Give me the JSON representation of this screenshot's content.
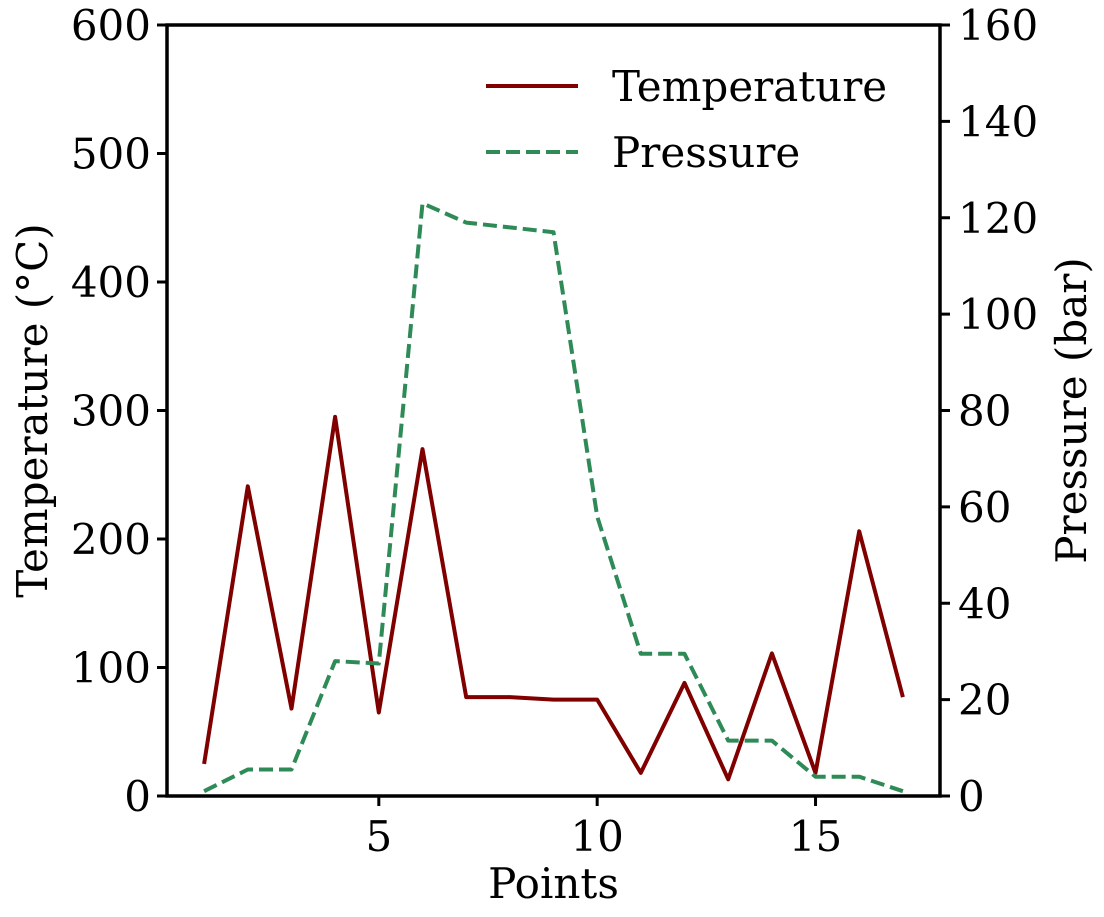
{
  "chart_data": {
    "type": "line",
    "x": [
      1,
      2,
      3,
      4,
      5,
      6,
      7,
      8,
      9,
      10,
      11,
      12,
      13,
      14,
      15,
      16,
      17
    ],
    "xlabel": "Points",
    "xlim": [
      0.15,
      17.85
    ],
    "xticks": [
      5,
      10,
      15
    ],
    "series": [
      {
        "name": "Temperature",
        "axis": "left",
        "color": "#800000",
        "style": "solid",
        "values": [
          25,
          241,
          68,
          295,
          65,
          270,
          77,
          77,
          75,
          75,
          18,
          88,
          13,
          111,
          18,
          206,
          77
        ]
      },
      {
        "name": "Pressure",
        "axis": "right",
        "color": "#2e8b57",
        "style": "dashed",
        "values": [
          1,
          5.5,
          5.5,
          28,
          27.5,
          123,
          119,
          118,
          117,
          58,
          29.5,
          29.5,
          11.5,
          11.5,
          4,
          4,
          1
        ]
      }
    ],
    "y_left": {
      "label": "Temperature ($^\\circ$C)",
      "label_display": "Temperature (°C)",
      "lim": [
        0,
        600
      ],
      "ticks": [
        0,
        100,
        200,
        300,
        400,
        500,
        600
      ]
    },
    "y_right": {
      "label": "Pressure (bar)",
      "lim": [
        0,
        160
      ],
      "ticks": [
        0,
        20,
        40,
        60,
        80,
        100,
        120,
        140,
        160
      ]
    },
    "legend": {
      "placement": "top-right",
      "entries": [
        "Temperature",
        "Pressure"
      ]
    },
    "grid": false
  }
}
